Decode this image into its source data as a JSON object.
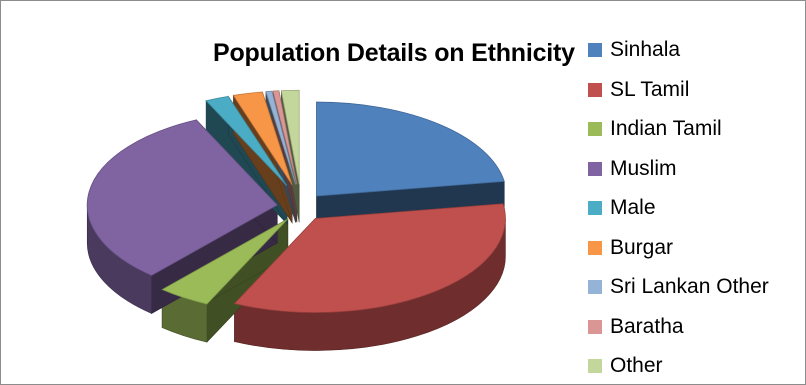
{
  "chart_data": {
    "type": "pie",
    "title": "Population Details on Ethnicity",
    "legend_position": "right",
    "style": "3d-exploded",
    "series": [
      {
        "name": "Sinhala",
        "value": 22.5,
        "color": "#4f81bd"
      },
      {
        "name": "SL Tamil",
        "value": 34.5,
        "color": "#c0504d"
      },
      {
        "name": "Indian Tamil",
        "value": 4.5,
        "color": "#9bbb59"
      },
      {
        "name": "Muslim",
        "value": 31.5,
        "color": "#8064a2"
      },
      {
        "name": "Male",
        "value": 2.0,
        "color": "#4bacc6"
      },
      {
        "name": "Burgar",
        "value": 2.5,
        "color": "#f79646"
      },
      {
        "name": "Sri Lankan Other",
        "value": 0.5,
        "color": "#95b3d7"
      },
      {
        "name": "Baratha",
        "value": 0.5,
        "color": "#d99694"
      },
      {
        "name": "Other",
        "value": 1.5,
        "color": "#c3d69b"
      }
    ]
  }
}
